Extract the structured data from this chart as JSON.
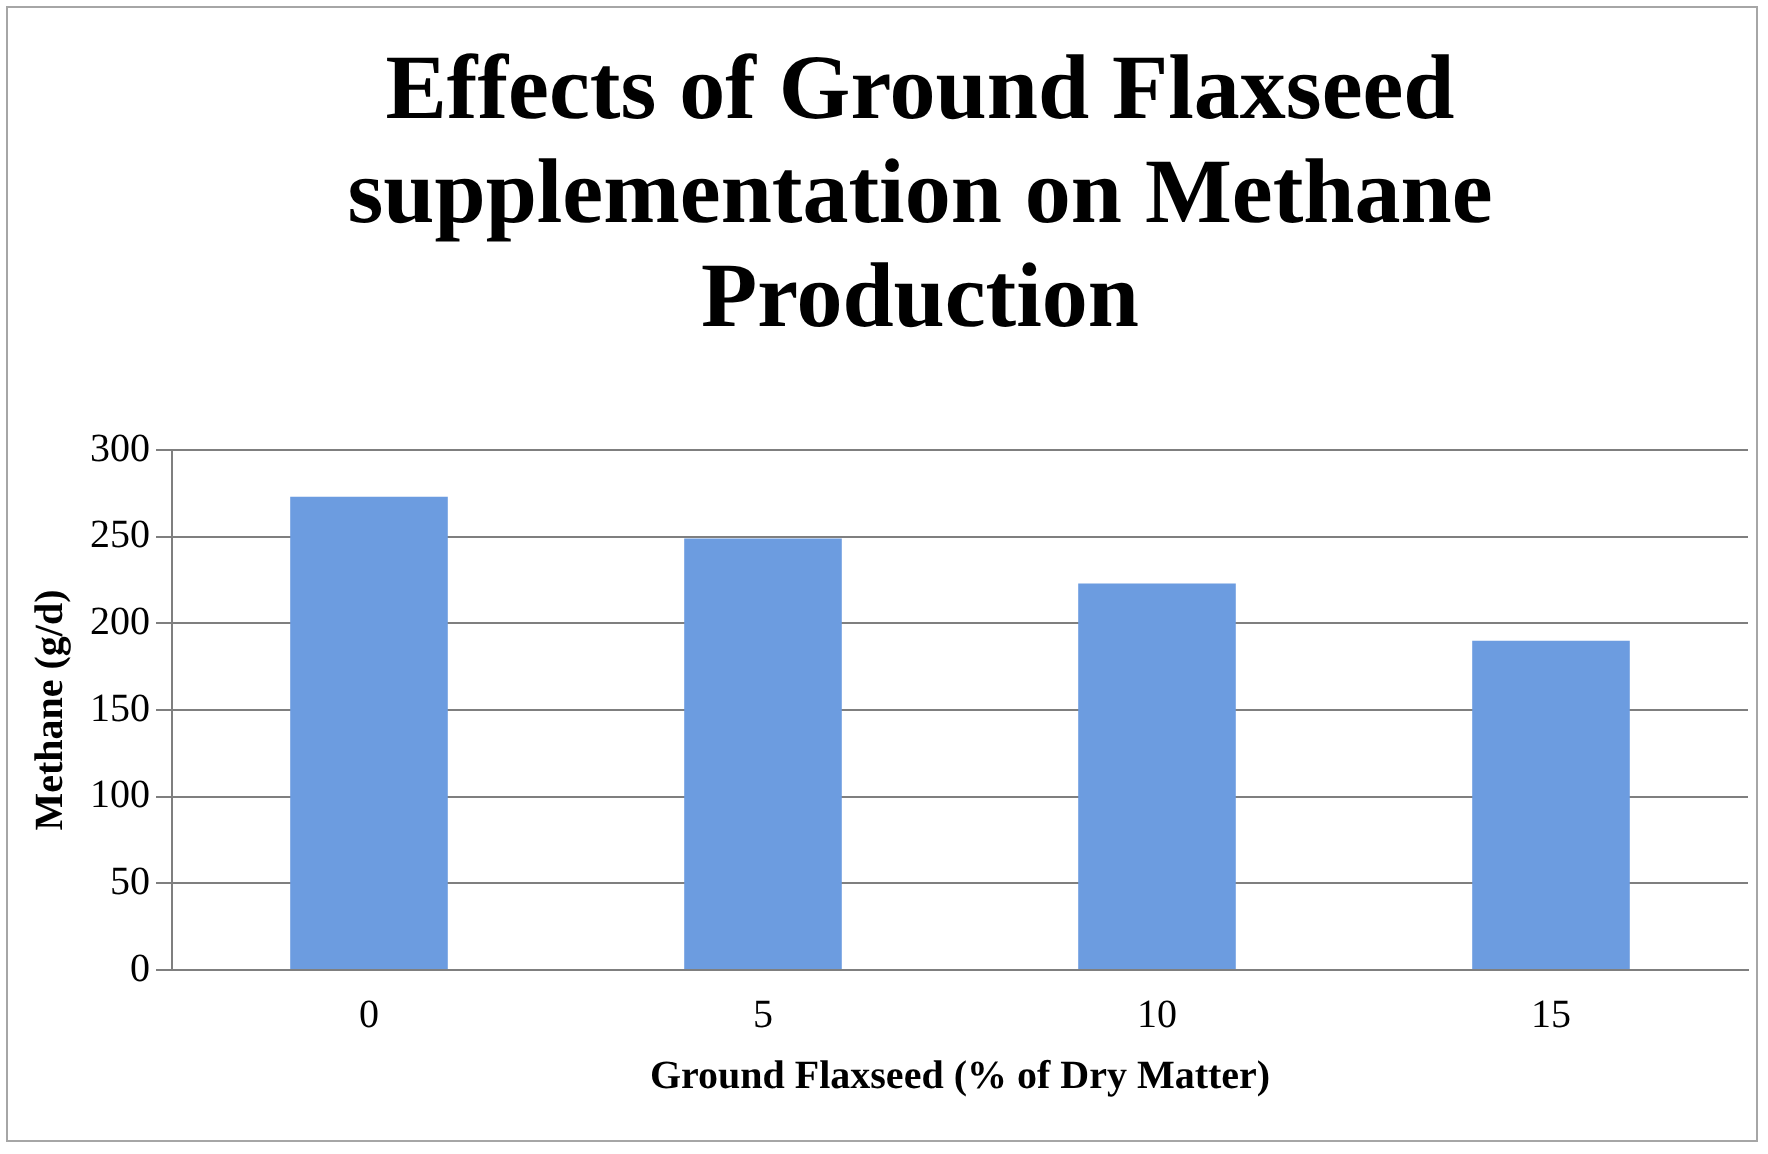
{
  "chart_data": {
    "type": "bar",
    "title": "Effects of Ground Flaxseed supplementation on Methane Production",
    "xlabel": "Ground Flaxseed (% of Dry Matter)",
    "ylabel": "Methane (g/d)",
    "categories": [
      "0",
      "5",
      "10",
      "15"
    ],
    "values": [
      273,
      249,
      223,
      190
    ],
    "color": "#6c9ce0",
    "ylim": [
      0,
      300
    ],
    "yticks": [
      0,
      50,
      100,
      150,
      200,
      250,
      300
    ],
    "grid": "y",
    "legend": false
  }
}
